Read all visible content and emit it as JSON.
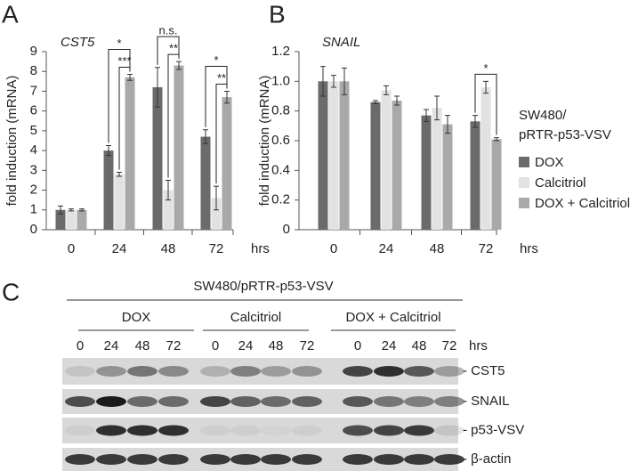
{
  "panel_labels": [
    "A",
    "B",
    "C"
  ],
  "chart_data": [
    {
      "type": "bar",
      "title": "CST5",
      "ylabel": "fold induction (mRNA)",
      "xlabel": "hrs",
      "categories": [
        "0",
        "24",
        "48",
        "72"
      ],
      "series": [
        {
          "name": "DOX",
          "color": "#6b6b6b",
          "values": [
            1.0,
            4.0,
            7.2,
            4.7
          ],
          "errors": [
            0.2,
            0.25,
            1.0,
            0.35
          ]
        },
        {
          "name": "Calcitriol",
          "color": "#e2e2e2",
          "values": [
            1.0,
            2.8,
            2.0,
            1.6
          ],
          "errors": [
            0.05,
            0.1,
            0.5,
            0.6
          ]
        },
        {
          "name": "DOX + Calcitriol",
          "color": "#a9a9a9",
          "values": [
            1.0,
            7.7,
            8.3,
            6.7
          ],
          "errors": [
            0.05,
            0.15,
            0.2,
            0.3
          ]
        }
      ],
      "ylim": [
        0,
        9
      ],
      "yticks": [
        0,
        1,
        2,
        3,
        4,
        5,
        6,
        7,
        8,
        9
      ],
      "annotations": [
        {
          "category": "24",
          "text": "***",
          "between": [
            "Calcitriol",
            "DOX + Calcitriol"
          ]
        },
        {
          "category": "24",
          "text": "*",
          "between": [
            "DOX",
            "DOX + Calcitriol"
          ]
        },
        {
          "category": "48",
          "text": "**",
          "between": [
            "Calcitriol",
            "DOX + Calcitriol"
          ]
        },
        {
          "category": "48",
          "text": "n.s.",
          "between": [
            "DOX",
            "DOX + Calcitriol"
          ]
        },
        {
          "category": "72",
          "text": "**",
          "between": [
            "Calcitriol",
            "DOX + Calcitriol"
          ]
        },
        {
          "category": "72",
          "text": "*",
          "between": [
            "DOX",
            "DOX + Calcitriol"
          ]
        }
      ]
    },
    {
      "type": "bar",
      "title": "SNAIL",
      "ylabel": "fold induction (mRNA)",
      "xlabel": "hrs",
      "categories": [
        "0",
        "24",
        "48",
        "72"
      ],
      "series": [
        {
          "name": "DOX",
          "color": "#6b6b6b",
          "values": [
            1.0,
            0.86,
            0.77,
            0.73
          ],
          "errors": [
            0.1,
            0.01,
            0.04,
            0.04
          ]
        },
        {
          "name": "Calcitriol",
          "color": "#e2e2e2",
          "values": [
            1.0,
            0.94,
            0.82,
            0.96
          ],
          "errors": [
            0.04,
            0.03,
            0.08,
            0.04
          ]
        },
        {
          "name": "DOX + Calcitriol",
          "color": "#a9a9a9",
          "values": [
            1.0,
            0.87,
            0.71,
            0.61
          ],
          "errors": [
            0.09,
            0.03,
            0.06,
            0.01
          ]
        }
      ],
      "ylim": [
        0,
        1.2
      ],
      "yticks": [
        0,
        0.2,
        0.4,
        0.6,
        0.8,
        {
          "value": 1.0,
          "label": "1.0"
        },
        1.2
      ],
      "legend_title": [
        "SW480/",
        "pRTR-p53-VSV"
      ],
      "annotations": [
        {
          "category": "72",
          "text": "*",
          "between": [
            "DOX",
            "DOX + Calcitriol"
          ]
        }
      ]
    }
  ],
  "blot": {
    "title": "SW480/pRTR-p53-VSV",
    "unit": "hrs",
    "groups": [
      {
        "name": "DOX",
        "lanes": [
          "0",
          "24",
          "48",
          "72"
        ]
      },
      {
        "name": "Calcitriol",
        "lanes": [
          "0",
          "24",
          "48",
          "72"
        ]
      },
      {
        "name": "DOX + Calcitriol",
        "lanes": [
          "0",
          "24",
          "48",
          "72"
        ]
      }
    ],
    "rows": [
      "- CST5",
      "- SNAIL",
      "- p53-VSV",
      "- β-actin"
    ]
  }
}
